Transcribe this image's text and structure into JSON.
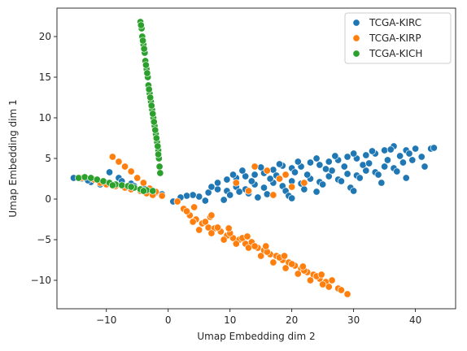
{
  "chart_data": {
    "type": "scatter",
    "xlabel": "Umap Embedding dim 2",
    "ylabel": "Umap Embedding dim 1",
    "xlim": [
      -18,
      46.5
    ],
    "ylim": [
      -13.5,
      23.5
    ],
    "xticks": [
      -10,
      0,
      10,
      20,
      30,
      40
    ],
    "yticks": [
      -10,
      -5,
      0,
      5,
      10,
      15,
      20
    ],
    "xtick_labels": [
      "−10",
      "0",
      "10",
      "20",
      "30",
      "40"
    ],
    "ytick_labels": [
      "−10",
      "−5",
      "0",
      "5",
      "10",
      "15",
      "20"
    ],
    "grid": false,
    "legend_position": "top-right",
    "series": [
      {
        "name": "TCGA-KIRC",
        "color": "#1f77b4",
        "points": [
          [
            5.0,
            0.3
          ],
          [
            6.5,
            0.8
          ],
          [
            8.0,
            1.2
          ],
          [
            9.5,
            1.0
          ],
          [
            11.0,
            1.5
          ],
          [
            12.5,
            1.2
          ],
          [
            14.0,
            1.8
          ],
          [
            15.5,
            1.4
          ],
          [
            17.0,
            2.0
          ],
          [
            18.5,
            1.6
          ],
          [
            20.0,
            2.2
          ],
          [
            21.5,
            1.9
          ],
          [
            23.0,
            2.5
          ],
          [
            24.5,
            2.1
          ],
          [
            26.0,
            2.8
          ],
          [
            27.5,
            2.4
          ],
          [
            29.0,
            3.1
          ],
          [
            30.5,
            2.9
          ],
          [
            32.0,
            3.5
          ],
          [
            33.5,
            3.3
          ],
          [
            35.0,
            4.0
          ],
          [
            36.5,
            3.8
          ],
          [
            38.0,
            4.5
          ],
          [
            39.5,
            4.8
          ],
          [
            41.0,
            5.2
          ],
          [
            42.5,
            6.2
          ],
          [
            43.0,
            6.3
          ],
          [
            40.0,
            6.2
          ],
          [
            38.5,
            6.0
          ],
          [
            36.5,
            6.5
          ],
          [
            35.0,
            6.0
          ],
          [
            33.5,
            5.6
          ],
          [
            32.0,
            5.4
          ],
          [
            30.5,
            5.0
          ],
          [
            29.0,
            5.2
          ],
          [
            27.5,
            4.8
          ],
          [
            26.0,
            4.6
          ],
          [
            24.5,
            4.2
          ],
          [
            23.0,
            4.5
          ],
          [
            21.5,
            4.0
          ],
          [
            20.0,
            3.8
          ],
          [
            18.5,
            4.1
          ],
          [
            17.0,
            3.6
          ],
          [
            15.5,
            3.2
          ],
          [
            14.0,
            3.0
          ],
          [
            12.5,
            2.8
          ],
          [
            11.0,
            2.6
          ],
          [
            9.5,
            2.4
          ],
          [
            8.0,
            2.0
          ],
          [
            7.0,
            1.5
          ],
          [
            10.0,
            0.5
          ],
          [
            13.0,
            0.7
          ],
          [
            16.0,
            0.6
          ],
          [
            19.0,
            1.0
          ],
          [
            22.0,
            1.2
          ],
          [
            25.0,
            1.8
          ],
          [
            28.0,
            2.2
          ],
          [
            31.0,
            2.6
          ],
          [
            34.0,
            3.0
          ],
          [
            37.0,
            3.4
          ],
          [
            12.0,
            3.5
          ],
          [
            15.0,
            3.9
          ],
          [
            18.0,
            4.3
          ],
          [
            21.0,
            4.6
          ],
          [
            24.0,
            5.0
          ],
          [
            27.0,
            5.3
          ],
          [
            30.0,
            5.6
          ],
          [
            33.0,
            5.9
          ],
          [
            36.0,
            6.1
          ],
          [
            39.0,
            5.6
          ],
          [
            6.0,
            -0.2
          ],
          [
            9.0,
            -0.1
          ],
          [
            14.5,
            0.2
          ],
          [
            19.5,
            0.4
          ],
          [
            24.0,
            0.9
          ],
          [
            29.5,
            1.4
          ],
          [
            34.5,
            2.0
          ],
          [
            38.5,
            2.6
          ],
          [
            41.5,
            4.0
          ],
          [
            10.5,
            3.0
          ],
          [
            16.5,
            2.5
          ],
          [
            22.5,
            3.0
          ],
          [
            26.5,
            3.5
          ],
          [
            31.5,
            4.2
          ],
          [
            35.5,
            4.8
          ],
          [
            37.5,
            5.3
          ],
          [
            11.5,
            0.9
          ],
          [
            13.5,
            2.2
          ],
          [
            17.5,
            2.9
          ],
          [
            20.5,
            3.3
          ],
          [
            25.5,
            3.7
          ],
          [
            28.5,
            4.0
          ],
          [
            32.5,
            4.4
          ],
          [
            4.0,
            0.5
          ],
          [
            3.0,
            0.4
          ],
          [
            2.0,
            0.2
          ],
          [
            0.8,
            -0.3
          ],
          [
            -2.0,
            0.8
          ],
          [
            -4.0,
            1.4
          ],
          [
            -6.0,
            1.9
          ],
          [
            -8.0,
            2.6
          ],
          [
            -9.5,
            3.3
          ],
          [
            -11.0,
            1.8
          ],
          [
            -12.5,
            2.1
          ],
          [
            -14.0,
            2.5
          ],
          [
            -15.3,
            2.6
          ],
          [
            -13.0,
            2.3
          ],
          [
            -10.0,
            2.0
          ],
          [
            -7.5,
            2.2
          ],
          [
            -5.5,
            1.6
          ],
          [
            -3.0,
            1.0
          ],
          [
            -1.0,
            0.6
          ],
          [
            20.0,
            0.1
          ],
          [
            30.0,
            1.0
          ]
        ]
      },
      {
        "name": "TCGA-KIRP",
        "color": "#ff7f0e",
        "points": [
          [
            1.5,
            -0.3
          ],
          [
            2.5,
            -1.2
          ],
          [
            3.5,
            -2.0
          ],
          [
            4.5,
            -2.5
          ],
          [
            5.5,
            -3.0
          ],
          [
            6.5,
            -3.5
          ],
          [
            7.5,
            -3.6
          ],
          [
            8.5,
            -4.0
          ],
          [
            9.5,
            -4.5
          ],
          [
            10.5,
            -4.8
          ],
          [
            11.5,
            -5.0
          ],
          [
            12.5,
            -5.5
          ],
          [
            13.5,
            -5.3
          ],
          [
            14.5,
            -6.0
          ],
          [
            15.5,
            -6.3
          ],
          [
            16.5,
            -6.8
          ],
          [
            17.5,
            -7.0
          ],
          [
            18.5,
            -7.5
          ],
          [
            19.5,
            -7.8
          ],
          [
            20.5,
            -8.2
          ],
          [
            21.5,
            -8.6
          ],
          [
            22.5,
            -9.0
          ],
          [
            23.5,
            -9.3
          ],
          [
            24.5,
            -9.8
          ],
          [
            25.5,
            -10.2
          ],
          [
            26.5,
            -10.0
          ],
          [
            27.5,
            -11.0
          ],
          [
            29.0,
            -11.7
          ],
          [
            3.0,
            -1.5
          ],
          [
            4.0,
            -2.8
          ],
          [
            5.0,
            -3.8
          ],
          [
            6.0,
            -2.8
          ],
          [
            7.0,
            -4.2
          ],
          [
            8.0,
            -3.5
          ],
          [
            9.0,
            -5.0
          ],
          [
            10.0,
            -4.2
          ],
          [
            11.0,
            -5.5
          ],
          [
            12.0,
            -4.8
          ],
          [
            13.0,
            -6.0
          ],
          [
            14.0,
            -5.8
          ],
          [
            15.0,
            -7.0
          ],
          [
            16.0,
            -6.5
          ],
          [
            17.0,
            -7.8
          ],
          [
            18.0,
            -7.2
          ],
          [
            19.0,
            -8.5
          ],
          [
            20.0,
            -8.0
          ],
          [
            21.0,
            -9.2
          ],
          [
            22.0,
            -8.8
          ],
          [
            23.0,
            -10.0
          ],
          [
            24.0,
            -9.5
          ],
          [
            25.0,
            -10.5
          ],
          [
            26.0,
            -10.8
          ],
          [
            28.0,
            -11.2
          ],
          [
            4.2,
            -1.0
          ],
          [
            6.8,
            -2.2
          ],
          [
            9.8,
            -3.6
          ],
          [
            12.8,
            -4.6
          ],
          [
            15.8,
            -5.8
          ],
          [
            18.8,
            -7.0
          ],
          [
            21.8,
            -8.3
          ],
          [
            24.8,
            -9.3
          ],
          [
            -9.0,
            5.2
          ],
          [
            -8.0,
            4.6
          ],
          [
            -7.0,
            4.0
          ],
          [
            -6.0,
            3.4
          ],
          [
            -5.0,
            2.6
          ],
          [
            -4.0,
            2.0
          ],
          [
            -3.0,
            1.3
          ],
          [
            -2.0,
            0.9
          ],
          [
            -1.0,
            0.4
          ],
          [
            -11.0,
            2.0
          ],
          [
            -12.0,
            2.4
          ],
          [
            -10.0,
            1.8
          ],
          [
            -8.5,
            1.6
          ],
          [
            -7.0,
            1.4
          ],
          [
            -6.0,
            1.2
          ],
          [
            -4.5,
            1.0
          ],
          [
            -3.5,
            0.7
          ],
          [
            -2.5,
            0.5
          ],
          [
            -14.0,
            2.6
          ],
          [
            14.0,
            4.0
          ],
          [
            16.0,
            3.5
          ],
          [
            18.0,
            2.5
          ],
          [
            20.0,
            1.5
          ],
          [
            22.0,
            2.0
          ],
          [
            11.0,
            2.0
          ],
          [
            13.0,
            1.0
          ],
          [
            17.0,
            0.5
          ],
          [
            19.0,
            3.0
          ],
          [
            7.0,
            -2.0
          ]
        ]
      },
      {
        "name": "TCGA-KICH",
        "color": "#2ca02c",
        "points": [
          [
            -4.5,
            21.8
          ],
          [
            -4.3,
            21.0
          ],
          [
            -4.2,
            20.0
          ],
          [
            -4.0,
            19.0
          ],
          [
            -3.8,
            18.0
          ],
          [
            -3.7,
            17.0
          ],
          [
            -3.5,
            16.0
          ],
          [
            -3.3,
            15.0
          ],
          [
            -3.2,
            14.0
          ],
          [
            -3.0,
            13.0
          ],
          [
            -2.8,
            12.0
          ],
          [
            -2.6,
            11.0
          ],
          [
            -2.4,
            10.0
          ],
          [
            -2.2,
            9.0
          ],
          [
            -2.0,
            8.0
          ],
          [
            -1.8,
            7.0
          ],
          [
            -1.6,
            6.0
          ],
          [
            -1.5,
            5.0
          ],
          [
            -1.4,
            4.0
          ],
          [
            -1.3,
            3.2
          ],
          [
            -4.4,
            21.4
          ],
          [
            -4.1,
            19.5
          ],
          [
            -3.9,
            18.5
          ],
          [
            -3.6,
            16.5
          ],
          [
            -3.4,
            15.5
          ],
          [
            -3.1,
            13.5
          ],
          [
            -2.9,
            12.5
          ],
          [
            -2.7,
            11.5
          ],
          [
            -2.5,
            10.5
          ],
          [
            -2.3,
            9.5
          ],
          [
            -2.1,
            8.5
          ],
          [
            -1.9,
            7.5
          ],
          [
            -1.7,
            6.5
          ],
          [
            -1.6,
            5.5
          ],
          [
            -14.5,
            2.6
          ],
          [
            -13.5,
            2.7
          ],
          [
            -12.5,
            2.6
          ],
          [
            -11.5,
            2.4
          ],
          [
            -10.5,
            2.2
          ],
          [
            -9.5,
            2.0
          ],
          [
            -8.5,
            1.8
          ],
          [
            -7.5,
            1.7
          ],
          [
            -6.5,
            1.6
          ],
          [
            -5.5,
            1.4
          ],
          [
            -4.5,
            1.2
          ],
          [
            -3.5,
            1.1
          ],
          [
            -2.5,
            1.0
          ],
          [
            -9.0,
            1.7
          ],
          [
            -6.0,
            1.5
          ],
          [
            -4.0,
            1.0
          ]
        ]
      }
    ]
  }
}
